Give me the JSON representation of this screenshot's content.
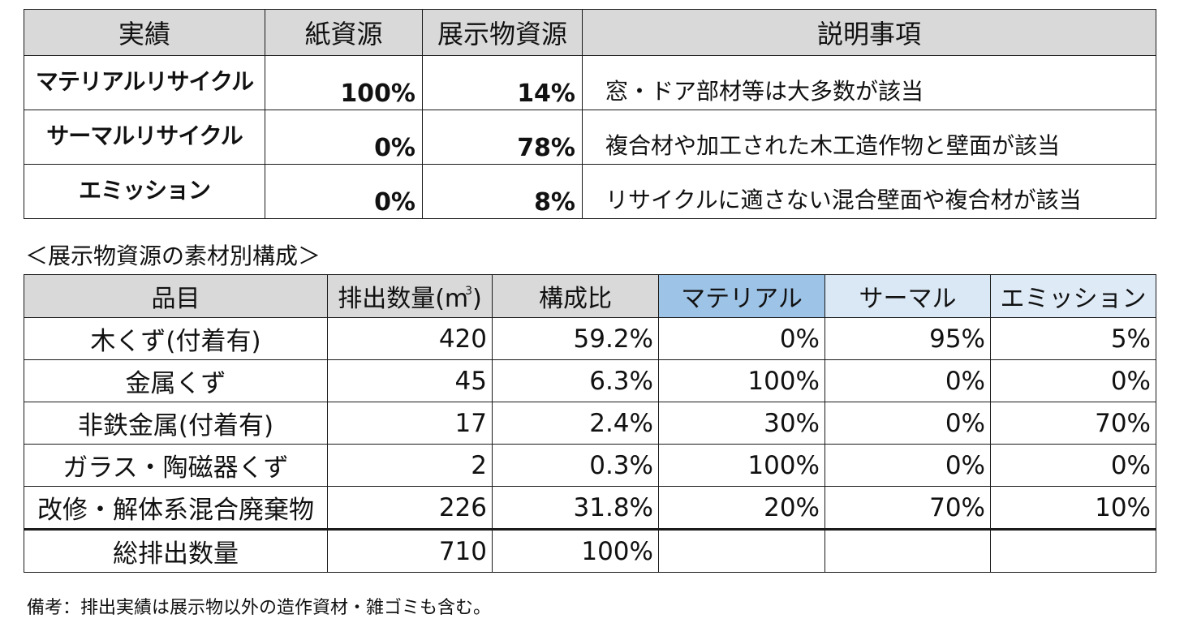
{
  "summary_table": {
    "headers": [
      "実績",
      "紙資源",
      "展示物資源",
      "説明事項"
    ],
    "rows": [
      {
        "category": "マテリアルリサイクル",
        "paper": "100%",
        "exhibit": "14%",
        "note": "窓・ドア部材等は大多数が該当"
      },
      {
        "category": "サーマルリサイクル",
        "paper": "0%",
        "exhibit": "78%",
        "note": "複合材や加工された木工造作物と壁面が該当"
      },
      {
        "category": "エミッション",
        "paper": "0%",
        "exhibit": "8%",
        "note": "リサイクルに適さない混合壁面や複合材が該当"
      }
    ]
  },
  "caption": "＜展示物資源の素材別構成＞",
  "material_table": {
    "headers": {
      "item": "品目",
      "volume": "排出数量(m",
      "volume_sup": "3",
      "volume_close": ")",
      "ratio": "構成比",
      "material": "マテリアル",
      "thermal": "サーマル",
      "emission": "エミッション"
    },
    "rows": [
      {
        "item": "木くず(付着有)",
        "volume": "420",
        "ratio": "59.2%",
        "material": "0%",
        "thermal": "95%",
        "emission": "5%"
      },
      {
        "item": "金属くず",
        "volume": "45",
        "ratio": "6.3%",
        "material": "100%",
        "thermal": "0%",
        "emission": "0%"
      },
      {
        "item": "非鉄金属(付着有)",
        "volume": "17",
        "ratio": "2.4%",
        "material": "30%",
        "thermal": "0%",
        "emission": "70%"
      },
      {
        "item": "ガラス・陶磁器くず",
        "volume": "2",
        "ratio": "0.3%",
        "material": "100%",
        "thermal": "0%",
        "emission": "0%"
      },
      {
        "item": "改修・解体系混合廃棄物",
        "volume": "226",
        "ratio": "31.8%",
        "material": "20%",
        "thermal": "70%",
        "emission": "10%"
      }
    ],
    "total": {
      "item": "総排出数量",
      "volume": "710",
      "ratio": "100%",
      "material": "",
      "thermal": "",
      "emission": ""
    }
  },
  "note": "備考：排出実績は展示物以外の造作資材・雑ゴミも含む。",
  "colors": {
    "header_gray": "#d9d9d9",
    "material_header": "#9dc3e6",
    "thermal_header": "#dae8f5",
    "emission_header": "#deebf7"
  }
}
